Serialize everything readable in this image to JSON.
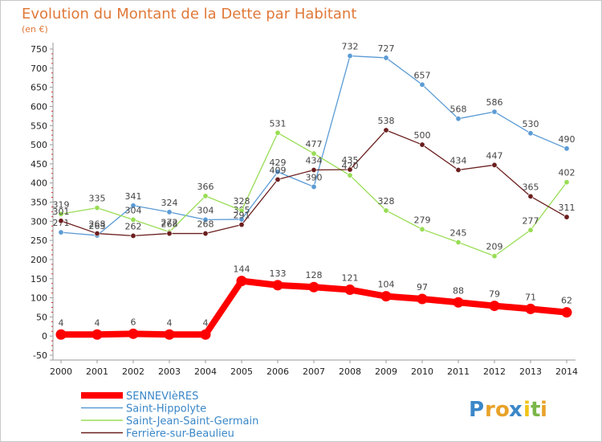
{
  "chart_data": {
    "type": "line",
    "title": "Evolution du Montant de la Dette par Habitant",
    "subtitle": "(en €)",
    "x": [
      2000,
      2001,
      2002,
      2003,
      2004,
      2005,
      2006,
      2007,
      2008,
      2009,
      2010,
      2011,
      2012,
      2013,
      2014
    ],
    "x_ticks": [
      "2000",
      "2001",
      "2002",
      "2003",
      "2004",
      "2005",
      "2006",
      "2007",
      "2008",
      "2009",
      "2010",
      "2011",
      "2012",
      "2013",
      "2014"
    ],
    "ylim": [
      -50,
      750
    ],
    "y_ticks": [
      "-50",
      "0",
      "50",
      "100",
      "150",
      "200",
      "250",
      "300",
      "350",
      "400",
      "450",
      "500",
      "550",
      "600",
      "650",
      "700",
      "750"
    ],
    "grid": false,
    "legend_position": "bottom-left",
    "series": [
      {
        "name": "Saint-Hippolyte",
        "color": "#5b9bd5",
        "values": [
          271,
          263,
          341,
          324,
          304,
          305,
          429,
          390,
          732,
          727,
          657,
          568,
          586,
          530,
          490
        ],
        "labels": [
          "271",
          "263",
          "341",
          "324",
          "304",
          "305",
          "429",
          "390",
          "732",
          "727",
          "657",
          "568",
          "586",
          "530",
          "490"
        ]
      },
      {
        "name": "Saint-Jean-Saint-Germain",
        "color": "#99dd55",
        "values": [
          319,
          335,
          304,
          272,
          366,
          328,
          531,
          477,
          420,
          328,
          279,
          245,
          209,
          277,
          402
        ],
        "labels": [
          "319",
          "335",
          "304",
          "272",
          "366",
          "328",
          "531",
          "477",
          "420",
          "328",
          "279",
          "245",
          "209",
          "277",
          "402"
        ]
      },
      {
        "name": "Ferrière-sur-Beaulieu",
        "color": "#6b1e1e",
        "values": [
          301,
          268,
          262,
          268,
          268,
          291,
          409,
          434,
          435,
          538,
          500,
          434,
          447,
          365,
          311
        ],
        "labels": [
          "301",
          "268",
          "262",
          "268",
          "268",
          "291",
          "409",
          "434",
          "435",
          "538",
          "500",
          "434",
          "447",
          "365",
          "311"
        ]
      },
      {
        "name": "SENNEVIèRES",
        "color": "#ff0000",
        "values": [
          4,
          4,
          6,
          4,
          4,
          144,
          133,
          128,
          121,
          104,
          97,
          88,
          79,
          71,
          62
        ],
        "labels": [
          "4",
          "4",
          "6",
          "4",
          "4",
          "144",
          "133",
          "128",
          "121",
          "104",
          "97",
          "88",
          "79",
          "71",
          "62"
        ]
      }
    ],
    "legend": [
      {
        "name": "SENNEVIèRES",
        "color": "#ff0000"
      },
      {
        "name": "Saint-Hippolyte",
        "color": "#5b9bd5"
      },
      {
        "name": "Saint-Jean-Saint-Germain",
        "color": "#99dd55"
      },
      {
        "name": "Ferrière-sur-Beaulieu",
        "color": "#6b1e1e"
      }
    ]
  },
  "brand": {
    "letters": [
      "P",
      "r",
      "o",
      "x",
      "i",
      "t",
      "i"
    ],
    "colors": [
      "#3a87c8",
      "#e8a22a",
      "#e8a22a",
      "#3a87c8",
      "#f0c419",
      "#7ab648",
      "#e8a22a"
    ]
  },
  "styles": {
    "axis_color": "#999999",
    "legend_text_color": "#3a87c8",
    "main_series": "SENNEVIèRES"
  }
}
